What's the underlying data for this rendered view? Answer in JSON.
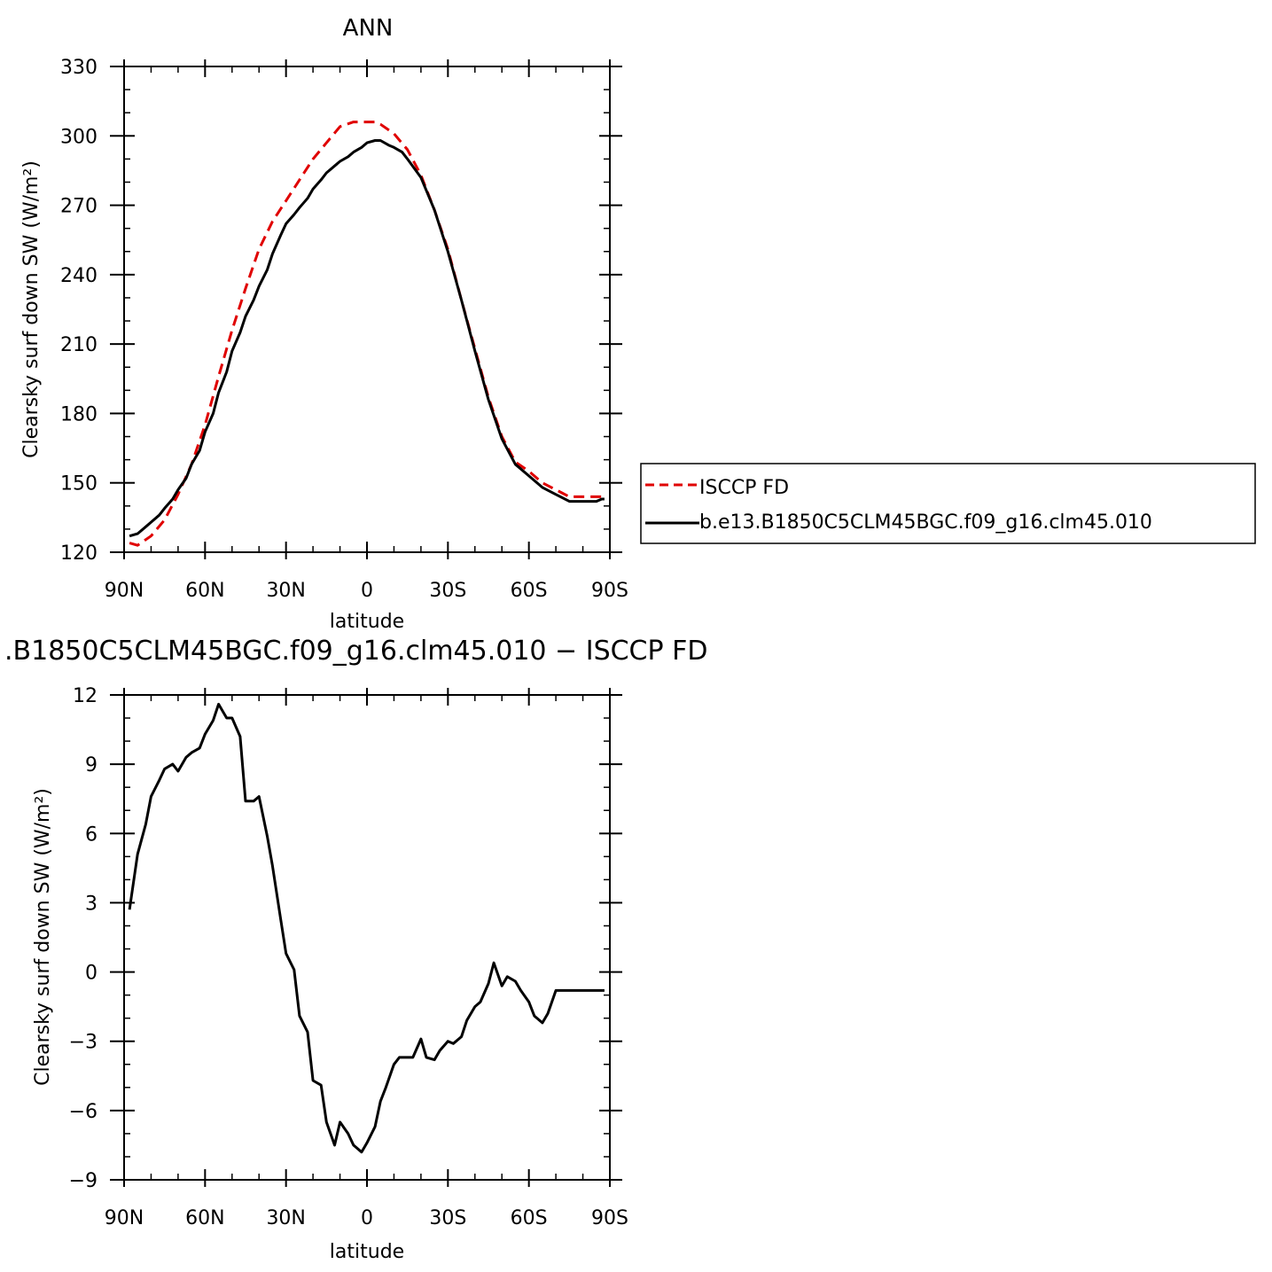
{
  "chart_data": [
    {
      "type": "line",
      "title": "ANN",
      "xlabel": "latitude",
      "ylabel": "Clearsky surf down SW (W/m²)",
      "xlim": [
        -90,
        90
      ],
      "ylim": [
        120,
        330
      ],
      "x_direction": "90N on left to 90S on right",
      "xtick_labels": [
        "90N",
        "60N",
        "30N",
        "0",
        "30S",
        "60S",
        "90S"
      ],
      "ytick_labels": [
        "120",
        "150",
        "180",
        "210",
        "240",
        "270",
        "300",
        "330"
      ],
      "legend_position": "right",
      "legend_labels": [
        "ISCCP FD",
        "b.e13.B1850C5CLM45BGC.f09_g16.clm45.010"
      ],
      "series": [
        {
          "name": "ISCCP FD",
          "color": "#e00000",
          "style": "dashed",
          "x": [
            88,
            85,
            80,
            75,
            70,
            65,
            60,
            55,
            50,
            45,
            40,
            35,
            30,
            25,
            20,
            15,
            10,
            5,
            0,
            -3,
            -5,
            -10,
            -15,
            -20,
            -25,
            -30,
            -35,
            -40,
            -45,
            -50,
            -55,
            -60,
            -65,
            -70,
            -75,
            -80,
            -85,
            -88
          ],
          "y": [
            124,
            123,
            127,
            134,
            145,
            158,
            175,
            196,
            216,
            234,
            251,
            263,
            272,
            281,
            290,
            297,
            304,
            306,
            306,
            306,
            305,
            301,
            294,
            283,
            268,
            251,
            229,
            208,
            187,
            170,
            159,
            155,
            150,
            147,
            144,
            144,
            144,
            144
          ]
        },
        {
          "name": "b.e13.B1850C5CLM45BGC.f09_g16.clm45.010",
          "color": "#000000",
          "style": "solid",
          "x": [
            88,
            85,
            82,
            80,
            77,
            75,
            72,
            70,
            67,
            65,
            62,
            60,
            57,
            55,
            52,
            50,
            47,
            45,
            42,
            40,
            37,
            35,
            32,
            30,
            27,
            25,
            22,
            20,
            17,
            15,
            12,
            10,
            7,
            5,
            2,
            0,
            -3,
            -5,
            -8,
            -10,
            -13,
            -15,
            -20,
            -25,
            -30,
            -35,
            -40,
            -45,
            -50,
            -55,
            -60,
            -65,
            -70,
            -75,
            -80,
            -83,
            -85,
            -87,
            -88
          ],
          "y": [
            127,
            128,
            131,
            133,
            136,
            139,
            143,
            147,
            152,
            158,
            164,
            172,
            180,
            189,
            198,
            207,
            215,
            222,
            229,
            235,
            242,
            249,
            257,
            262,
            266,
            269,
            273,
            277,
            281,
            284,
            287,
            289,
            291,
            293,
            295,
            297,
            298,
            298,
            296,
            295,
            293,
            290,
            282,
            268,
            250,
            229,
            207,
            186,
            169,
            158,
            153,
            148,
            145,
            142,
            142,
            142,
            142,
            143,
            143
          ]
        }
      ]
    },
    {
      "type": "line",
      "title": ".B1850C5CLM45BGC.f09_g16.clm45.010 − ISCCP FD",
      "xlabel": "latitude",
      "ylabel": "Clearsky surf down SW (W/m²)",
      "xlim": [
        -90,
        90
      ],
      "ylim": [
        -9,
        12
      ],
      "x_direction": "90N on left to 90S on right",
      "xtick_labels": [
        "90N",
        "60N",
        "30N",
        "0",
        "30S",
        "60S",
        "90S"
      ],
      "ytick_labels": [
        "−9",
        "−6",
        "−3",
        "0",
        "3",
        "6",
        "9",
        "12"
      ],
      "series": [
        {
          "color": "#000000",
          "style": "solid",
          "x": [
            88,
            85,
            82,
            80,
            77,
            75,
            72,
            70,
            67,
            65,
            62,
            60,
            57,
            55,
            52,
            50,
            47,
            45,
            42,
            40,
            37,
            35,
            32,
            30,
            27,
            25,
            22,
            20,
            17,
            15,
            12,
            10,
            7,
            5,
            2,
            0,
            -3,
            -5,
            -7,
            -10,
            -12,
            -15,
            -17,
            -20,
            -22,
            -25,
            -27,
            -30,
            -32,
            -35,
            -37,
            -40,
            -42,
            -45,
            -47,
            -50,
            -52,
            -55,
            -57,
            -60,
            -62,
            -65,
            -67,
            -70,
            -72,
            -75,
            -77,
            -80,
            -82,
            -85,
            -88
          ],
          "y": [
            2.7,
            5.1,
            6.4,
            7.6,
            8.3,
            8.8,
            9.0,
            8.7,
            9.3,
            9.5,
            9.7,
            10.3,
            10.9,
            11.6,
            11.0,
            11.0,
            10.2,
            7.4,
            7.4,
            7.6,
            5.9,
            4.6,
            2.3,
            0.8,
            0.1,
            -1.9,
            -2.6,
            -4.7,
            -4.9,
            -6.5,
            -7.5,
            -6.5,
            -7.0,
            -7.5,
            -7.8,
            -7.4,
            -6.7,
            -5.6,
            -5.0,
            -4.0,
            -3.7,
            -3.7,
            -3.7,
            -2.9,
            -3.7,
            -3.8,
            -3.4,
            -3.0,
            -3.1,
            -2.8,
            -2.1,
            -1.5,
            -1.3,
            -0.5,
            0.4,
            -0.6,
            -0.2,
            -0.4,
            -0.8,
            -1.3,
            -1.9,
            -2.2,
            -1.8,
            -0.8,
            -0.8,
            -0.8,
            -0.8,
            -0.8,
            -0.8,
            -0.8,
            -0.8
          ]
        }
      ]
    }
  ]
}
